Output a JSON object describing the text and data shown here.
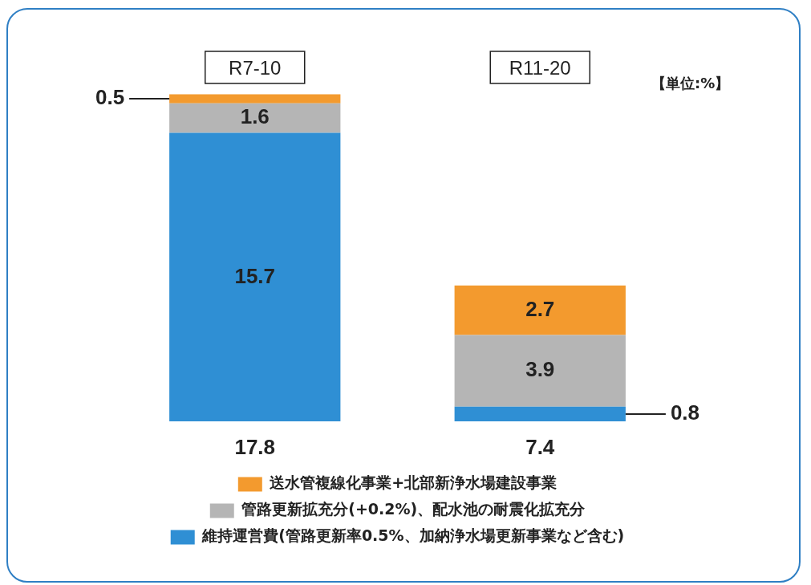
{
  "chart_data": {
    "type": "bar",
    "stacked": true,
    "categories": [
      "R7-10",
      "R11-20"
    ],
    "series": [
      {
        "name": "維持運営費(管路更新率0.5%、加納浄水場更新事業など含む)",
        "color": "#2f8fd4",
        "values": [
          15.7,
          0.8
        ]
      },
      {
        "name": "管路更新拡充分(+0.2%)、配水池の耐震化拡充分",
        "color": "#b5b5b5",
        "values": [
          1.6,
          3.9
        ]
      },
      {
        "name": "送水管複線化事業+北部新浄水場建設事業",
        "color": "#f39a2e",
        "values": [
          0.5,
          2.7
        ]
      }
    ],
    "data_labels": true,
    "totals": [
      "17.8",
      "7.4"
    ],
    "legend": "bottom",
    "grid": false,
    "annotations": [
      "【単位:%】"
    ]
  }
}
